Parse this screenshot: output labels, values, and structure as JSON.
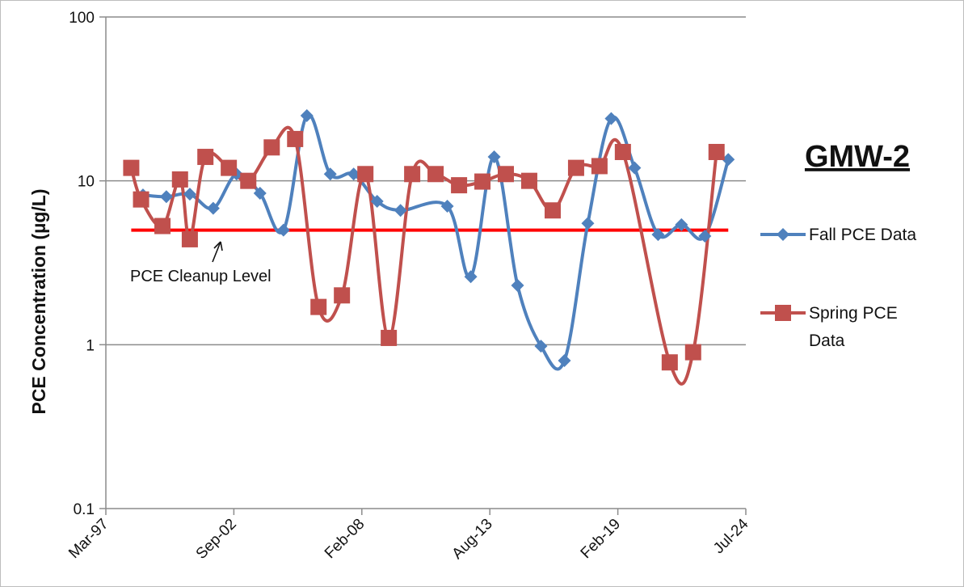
{
  "chart_data": {
    "type": "line",
    "title": "GMW-2",
    "xlabel": "",
    "ylabel": "PCE Concentration (µg/L)",
    "x_ticks": [
      "Mar-97",
      "Sep-02",
      "Feb-08",
      "Aug-13",
      "Feb-19",
      "Jul-24"
    ],
    "y_ticks": [
      "0.1",
      "1",
      "10",
      "100"
    ],
    "ylim": [
      0.1,
      100
    ],
    "y_scale": "log",
    "xlim": [
      "1997-03-01",
      "2024-07-01"
    ],
    "grid": "horizontal",
    "legend_position": "right",
    "series": [
      {
        "name": "Fall PCE Data",
        "color": "#4f81bd",
        "marker": "diamond",
        "data": [
          {
            "x": "1998-10-01",
            "y": 8.2
          },
          {
            "x": "1999-10-01",
            "y": 8.0
          },
          {
            "x": "2000-10-01",
            "y": 8.3
          },
          {
            "x": "2001-10-01",
            "y": 6.8
          },
          {
            "x": "2002-10-01",
            "y": 11.0
          },
          {
            "x": "2003-10-01",
            "y": 8.4
          },
          {
            "x": "2004-10-01",
            "y": 5.0
          },
          {
            "x": "2005-10-01",
            "y": 25.0
          },
          {
            "x": "2006-10-01",
            "y": 11.0
          },
          {
            "x": "2007-10-01",
            "y": 11.0
          },
          {
            "x": "2008-10-01",
            "y": 7.5
          },
          {
            "x": "2009-10-01",
            "y": 6.6
          },
          {
            "x": "2011-10-01",
            "y": 7.0
          },
          {
            "x": "2012-10-01",
            "y": 2.6
          },
          {
            "x": "2013-10-01",
            "y": 14.0
          },
          {
            "x": "2014-10-01",
            "y": 2.3
          },
          {
            "x": "2015-10-01",
            "y": 0.98
          },
          {
            "x": "2016-10-01",
            "y": 0.8
          },
          {
            "x": "2017-10-01",
            "y": 5.5
          },
          {
            "x": "2018-10-01",
            "y": 24.0
          },
          {
            "x": "2019-10-01",
            "y": 12.0
          },
          {
            "x": "2020-10-01",
            "y": 4.7
          },
          {
            "x": "2021-10-01",
            "y": 5.4
          },
          {
            "x": "2022-10-01",
            "y": 4.6
          },
          {
            "x": "2023-10-01",
            "y": 13.5
          }
        ]
      },
      {
        "name": "Spring PCE Data",
        "color": "#c0504d",
        "marker": "square",
        "data": [
          {
            "x": "1998-04-01",
            "y": 12.0
          },
          {
            "x": "1998-09-01",
            "y": 7.7
          },
          {
            "x": "1999-08-01",
            "y": 5.3
          },
          {
            "x": "2000-05-01",
            "y": 10.2
          },
          {
            "x": "2000-10-01",
            "y": 4.4
          },
          {
            "x": "2001-06-01",
            "y": 14.0
          },
          {
            "x": "2002-06-01",
            "y": 12.0
          },
          {
            "x": "2003-04-01",
            "y": 10.0
          },
          {
            "x": "2004-04-01",
            "y": 16.0
          },
          {
            "x": "2005-04-01",
            "y": 18.0
          },
          {
            "x": "2006-04-01",
            "y": 1.7
          },
          {
            "x": "2007-04-01",
            "y": 2.0
          },
          {
            "x": "2008-04-01",
            "y": 11.0
          },
          {
            "x": "2009-04-01",
            "y": 1.1
          },
          {
            "x": "2010-04-01",
            "y": 11.0
          },
          {
            "x": "2011-04-01",
            "y": 11.0
          },
          {
            "x": "2012-04-01",
            "y": 9.4
          },
          {
            "x": "2013-04-01",
            "y": 9.9
          },
          {
            "x": "2014-04-01",
            "y": 11.0
          },
          {
            "x": "2015-04-01",
            "y": 10.0
          },
          {
            "x": "2016-04-01",
            "y": 6.6
          },
          {
            "x": "2017-04-01",
            "y": 12.0
          },
          {
            "x": "2018-04-01",
            "y": 12.3
          },
          {
            "x": "2019-04-01",
            "y": 15.0
          },
          {
            "x": "2021-04-01",
            "y": 0.78
          },
          {
            "x": "2022-04-01",
            "y": 0.9
          },
          {
            "x": "2023-04-01",
            "y": 15.0
          }
        ]
      }
    ],
    "reference_line": {
      "label": "PCE Cleanup Level",
      "y": 5,
      "x_start": "1998-04-01",
      "x_end": "2023-10-01",
      "color": "#ff0000"
    }
  }
}
